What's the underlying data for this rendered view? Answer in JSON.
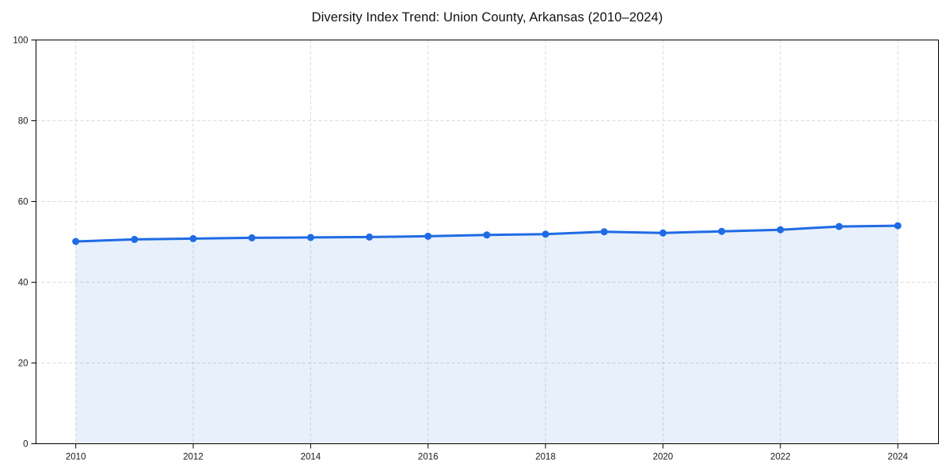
{
  "chart_data": {
    "type": "line",
    "title": "Diversity Index Trend: Union County, Arkansas (2010–2024)",
    "series_name": "Diversity Index",
    "x": [
      2010,
      2011,
      2012,
      2013,
      2014,
      2015,
      2016,
      2017,
      2018,
      2019,
      2020,
      2021,
      2022,
      2023,
      2024
    ],
    "values": [
      50.1,
      50.6,
      50.8,
      51.0,
      51.1,
      51.2,
      51.4,
      51.7,
      51.9,
      52.5,
      52.2,
      52.6,
      53.0,
      53.8,
      54.0
    ],
    "xlabel": "",
    "ylabel": "",
    "ylim": [
      0,
      100
    ],
    "yticks": [
      0,
      20,
      40,
      60,
      80,
      100
    ],
    "xticks": [
      2010,
      2012,
      2014,
      2016,
      2018,
      2020,
      2022,
      2024
    ],
    "grid": true,
    "legend": false,
    "marker": "circle",
    "colors": {
      "line": "#1f6be4",
      "marker": "#1f6be4",
      "fill": "#1f6be4",
      "fill_opacity": 0.1,
      "grid": "#d9d9d9",
      "axis": "#000000",
      "tick_text": "#1a1a1a",
      "title_text": "#111111",
      "background": "#ffffff"
    }
  }
}
